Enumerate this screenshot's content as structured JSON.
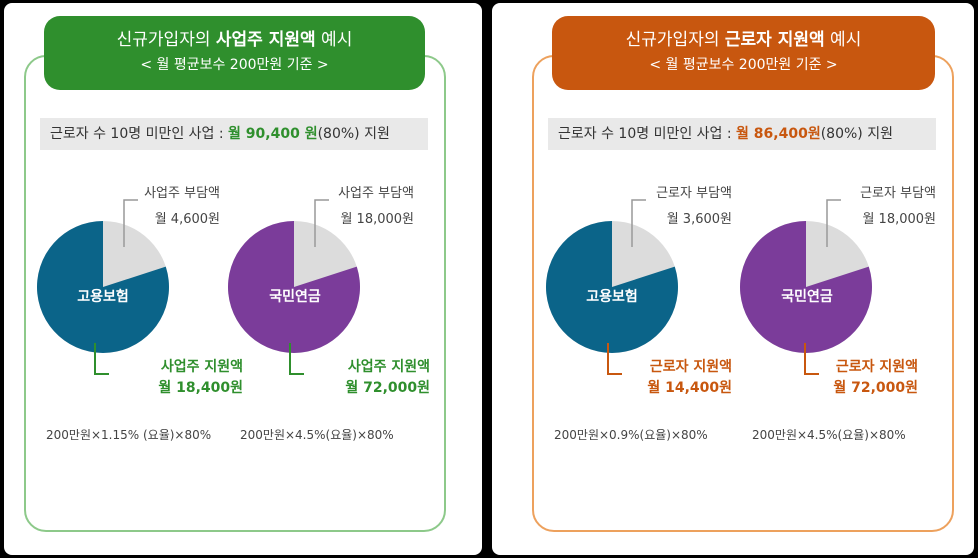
{
  "colors": {
    "green": "#2f8f2d",
    "green_border": "#8dc98a",
    "orange": "#c8570f",
    "orange_border": "#eda15d",
    "blue": "#0b6489",
    "purple": "#7b3c9a",
    "slice": "#dcdcdc",
    "subsidy_bg": "#e9e9e9"
  },
  "left": {
    "header_prefix": "신규가입자의 ",
    "header_bold": "사업주 지원액",
    "header_suffix": " 예시",
    "header_sub": "< 월 평균보수 200만원 기준 >",
    "subsidy_text": "근로자 수 10명 미만인 사업 : ",
    "subsidy_amount": "월 90,400 원",
    "subsidy_rest": "(80%) 지원",
    "pie1": {
      "label": "고용보험",
      "burden_title": "사업주 부담액",
      "burden_value": "월 4,600원",
      "support_title": "사업주 지원액",
      "support_value": "월 18,400원",
      "support_fraction": 0.8,
      "formula": "200만원×1.15% (요율)×80%"
    },
    "pie2": {
      "label": "국민연금",
      "burden_title": "사업주 부담액",
      "burden_value": "월 18,000원",
      "support_title": "사업주 지원액",
      "support_value": "월 72,000원",
      "support_fraction": 0.8,
      "formula": "200만원×4.5%(요율)×80%"
    }
  },
  "right": {
    "header_prefix": "신규가입자의 ",
    "header_bold": "근로자 지원액",
    "header_suffix": " 예시",
    "header_sub": "< 월 평균보수 200만원 기준 >",
    "subsidy_text": "근로자 수 10명 미만인 사업 : ",
    "subsidy_amount": "월 86,400원",
    "subsidy_rest": "(80%) 지원",
    "pie1": {
      "label": "고용보험",
      "burden_title": "근로자 부담액",
      "burden_value": "월 3,600원",
      "support_title": "근로자 지원액",
      "support_value": "월 14,400원",
      "support_fraction": 0.8,
      "formula": "200만원×0.9%(요율)×80%"
    },
    "pie2": {
      "label": "국민연금",
      "burden_title": "근로자 부담액",
      "burden_value": "월 18,000원",
      "support_title": "근로자 지원액",
      "support_value": "월 72,000원",
      "support_fraction": 0.8,
      "formula": "200만원×4.5%(요율)×80%"
    }
  }
}
